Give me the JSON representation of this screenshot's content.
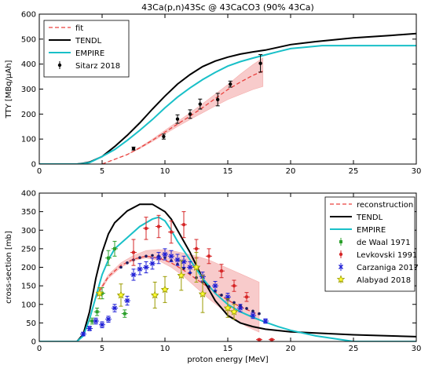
{
  "chart_data": [
    {
      "type": "line",
      "title": "43Ca(p,n)43Sc @ 43CaCO3 (90% 43Ca)",
      "xlabel": "",
      "ylabel": "TTY [MBq/μAh]",
      "xlim": [
        0,
        30
      ],
      "ylim": [
        0,
        600
      ],
      "xticks": [
        0,
        5,
        10,
        15,
        20,
        25,
        30
      ],
      "yticks": [
        0,
        100,
        200,
        300,
        400,
        500,
        600
      ],
      "grid": false,
      "legend_position": "top-left",
      "series": [
        {
          "name": "fit",
          "style": "dashed",
          "color": "#e9413d",
          "x": [
            5,
            7,
            8,
            9,
            10,
            11,
            12,
            13,
            14,
            15,
            16,
            17,
            17.8
          ],
          "y": [
            0,
            38,
            65,
            95,
            128,
            160,
            192,
            226,
            262,
            298,
            328,
            355,
            372
          ]
        },
        {
          "name": "TENDL",
          "style": "solid",
          "color": "#000000",
          "x": [
            0,
            3,
            3.5,
            4,
            5,
            6,
            7,
            8,
            9,
            10,
            11,
            12,
            13,
            14,
            15,
            16,
            17,
            18,
            20,
            22,
            25,
            28,
            30
          ],
          "y": [
            0,
            0,
            3,
            8,
            30,
            70,
            115,
            165,
            220,
            272,
            320,
            358,
            390,
            412,
            428,
            440,
            449,
            456,
            478,
            490,
            505,
            515,
            522
          ]
        },
        {
          "name": "EMPIRE",
          "style": "solid",
          "color": "#19c0c8",
          "x": [
            0,
            3,
            3.5,
            4,
            5,
            6,
            7,
            8,
            9,
            10,
            11,
            12,
            13,
            14,
            15,
            16,
            17,
            18,
            19,
            20,
            22.5,
            30
          ],
          "y": [
            0,
            0,
            2,
            6,
            30,
            58,
            95,
            135,
            178,
            225,
            268,
            305,
            338,
            367,
            392,
            410,
            424,
            437,
            450,
            462,
            474,
            474
          ]
        }
      ],
      "band": {
        "color": "#f4a8a8",
        "x": [
          5,
          7,
          8,
          9,
          10,
          11,
          12,
          13,
          14,
          15,
          16,
          17,
          17.8
        ],
        "lower": [
          0,
          38,
          62,
          90,
          120,
          150,
          178,
          205,
          232,
          258,
          278,
          298,
          310
        ],
        "upper": [
          0,
          38,
          68,
          100,
          135,
          170,
          205,
          242,
          280,
          318,
          360,
          398,
          425
        ]
      },
      "points": {
        "name": "Sitarz 2018",
        "color": "#000000",
        "x": [
          7.5,
          9.9,
          11,
          12,
          12.8,
          14.2,
          15.2,
          17.6
        ],
        "y": [
          62,
          110,
          180,
          200,
          240,
          258,
          320,
          403
        ],
        "yerr": [
          6,
          10,
          17,
          17,
          20,
          25,
          12,
          35
        ]
      }
    },
    {
      "type": "line",
      "title": "",
      "xlabel": "proton energy [MeV]",
      "ylabel": "cross-section [mb]",
      "xlim": [
        0,
        30
      ],
      "ylim": [
        0,
        400
      ],
      "xticks": [
        0,
        5,
        10,
        15,
        20,
        25,
        30
      ],
      "yticks": [
        0,
        50,
        100,
        150,
        200,
        250,
        300,
        350,
        400
      ],
      "grid": false,
      "legend_position": "top-right",
      "series": [
        {
          "name": "reconstruction",
          "style": "dashed",
          "color": "#e9413d",
          "x": [
            4.5,
            5.5,
            6.5,
            7.5,
            8.5,
            9.5,
            10.5,
            11.5,
            12.5,
            13.5,
            14.5,
            15.5,
            16.5,
            17.5
          ],
          "y": [
            120,
            175,
            205,
            222,
            230,
            225,
            212,
            192,
            168,
            145,
            122,
            102,
            86,
            72
          ]
        },
        {
          "name": "TENDL",
          "style": "solid",
          "color": "#000000",
          "x": [
            0,
            3,
            3.5,
            4,
            4.5,
            5,
            5.5,
            6,
            7,
            8,
            9,
            10,
            10.5,
            11,
            12,
            13,
            14,
            15,
            16,
            17,
            18,
            20,
            25,
            30
          ],
          "y": [
            0,
            0,
            20,
            80,
            170,
            240,
            290,
            320,
            352,
            370,
            370,
            350,
            330,
            300,
            240,
            170,
            110,
            70,
            50,
            40,
            33,
            26,
            18,
            13
          ]
        },
        {
          "name": "EMPIRE",
          "style": "solid",
          "color": "#19c0c8",
          "x": [
            0,
            3,
            3.5,
            4,
            4.5,
            5,
            5.5,
            6,
            7,
            8,
            9,
            9.5,
            10,
            10.5,
            11,
            12,
            13,
            14,
            15,
            16,
            17,
            18,
            19,
            20,
            22,
            24,
            25,
            30
          ],
          "y": [
            0,
            0,
            15,
            60,
            120,
            180,
            220,
            250,
            280,
            310,
            330,
            335,
            325,
            300,
            270,
            220,
            170,
            130,
            100,
            80,
            65,
            52,
            40,
            30,
            15,
            5,
            0,
            0
          ]
        }
      ],
      "band": {
        "color": "#f4a8a8",
        "x": [
          4.5,
          5.5,
          6.5,
          7.5,
          8.5,
          9.5,
          10.5,
          11.5,
          12.5,
          13.5,
          14.5,
          15.5,
          16.5,
          17.5
        ],
        "lower": [
          115,
          170,
          200,
          218,
          225,
          218,
          200,
          175,
          145,
          115,
          88,
          62,
          40,
          25
        ],
        "upper": [
          125,
          180,
          212,
          232,
          245,
          248,
          245,
          238,
          230,
          220,
          205,
          190,
          175,
          160
        ]
      },
      "dotted_points": {
        "color": "#1a1a5e",
        "x": [
          6.5,
          7,
          7.5,
          8,
          8.5,
          9,
          9.5,
          10,
          10.5,
          11,
          11.5,
          12,
          12.5,
          13,
          13.5,
          14,
          14.5,
          15,
          15.5,
          16,
          16.5,
          17,
          17.5
        ],
        "y": [
          200,
          212,
          220,
          226,
          230,
          232,
          230,
          226,
          218,
          208,
          197,
          185,
          172,
          160,
          148,
          136,
          125,
          115,
          105,
          97,
          89,
          82,
          75
        ]
      },
      "points": [
        {
          "name": "de Waal 1971",
          "color": "#2ca02c",
          "marker": "square",
          "x": [
            4.2,
            4.6,
            5.0,
            5.5,
            6.0,
            6.8
          ],
          "y": [
            55,
            80,
            130,
            225,
            250,
            75
          ],
          "yerr": [
            8,
            10,
            15,
            20,
            20,
            10
          ]
        },
        {
          "name": "Levkovski 1991",
          "color": "#d62728",
          "marker": "dot",
          "x": [
            7.5,
            8.5,
            9.5,
            10.5,
            11.5,
            12.5,
            13.5,
            14.5,
            15.5,
            16.5,
            17.5,
            18.5
          ],
          "y": [
            240,
            305,
            310,
            295,
            315,
            250,
            230,
            190,
            150,
            120,
            5,
            5
          ],
          "yerr": [
            35,
            30,
            30,
            30,
            35,
            25,
            20,
            18,
            15,
            12,
            2,
            2
          ]
        },
        {
          "name": "Carzaniga 2017",
          "color": "#1f1fd6",
          "marker": "x",
          "x": [
            3.5,
            4.0,
            4.5,
            5.0,
            5.5,
            6.0,
            7.0,
            7.5,
            8.0,
            8.5,
            9.0,
            9.5,
            10.0,
            10.5,
            11.0,
            11.5,
            12.0,
            13.0,
            14.0,
            15.0,
            16.0,
            17.0,
            18.0
          ],
          "y": [
            20,
            35,
            55,
            45,
            60,
            90,
            110,
            180,
            195,
            200,
            210,
            225,
            235,
            230,
            220,
            215,
            200,
            175,
            150,
            120,
            90,
            70,
            55
          ],
          "yerr": [
            5,
            6,
            8,
            8,
            8,
            10,
            12,
            15,
            15,
            15,
            15,
            15,
            15,
            15,
            15,
            15,
            15,
            12,
            12,
            10,
            10,
            8,
            6
          ]
        },
        {
          "name": "Alabyad 2018",
          "color": "#9b9b00",
          "marker": "star",
          "x": [
            4.8,
            6.5,
            9.2,
            10.0,
            11.3,
            12.5,
            13.0,
            15.0,
            15.5
          ],
          "y": [
            130,
            125,
            125,
            140,
            178,
            200,
            128,
            90,
            80
          ],
          "yerr": [
            15,
            30,
            35,
            35,
            40,
            40,
            50,
            25,
            20
          ]
        }
      ]
    }
  ]
}
